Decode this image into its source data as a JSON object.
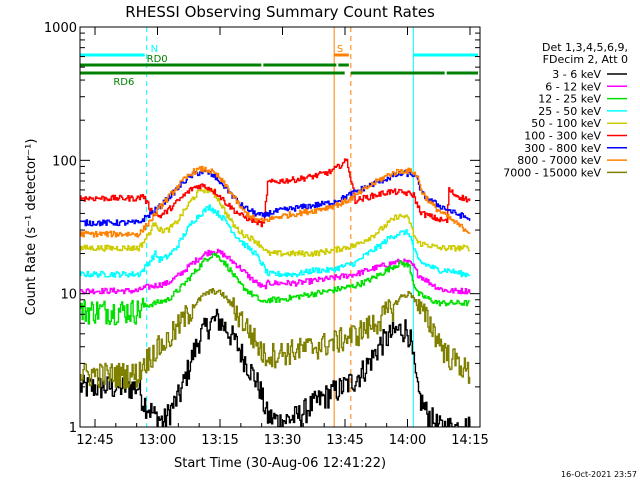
{
  "chart_data": {
    "type": "line",
    "title": "RHESSI Observing Summary Count Rates",
    "xlabel": "Start Time (30-Aug-06 12:41:22)",
    "ylabel": "Count Rate (s⁻¹ detector⁻¹)",
    "yscale": "log",
    "ylim": [
      1,
      1000
    ],
    "xlim_minutes": [
      0,
      96
    ],
    "x_tick_labels": [
      "12:45",
      "13:00",
      "13:15",
      "13:30",
      "13:45",
      "14:00",
      "14:15"
    ],
    "x_tick_minutes": [
      3.6,
      18.6,
      33.6,
      48.6,
      63.6,
      78.6,
      93.6
    ],
    "y_ticks": [
      1,
      10,
      100,
      1000
    ],
    "y_tick_labels": [
      "1",
      "10",
      "100",
      "1000"
    ],
    "legend_header": [
      "Det 1,3,4,5,6,9,",
      "FDecim 2, Att 0"
    ],
    "legend_placement": "right",
    "grid": false,
    "series": [
      {
        "name": "3 - 6 keV",
        "color": "#000000",
        "x": [
          0,
          14,
          15,
          18,
          20,
          24,
          27,
          29,
          31,
          33,
          35,
          37,
          40,
          43,
          44,
          45,
          48,
          52,
          56,
          60,
          63,
          66,
          68,
          70,
          72,
          74,
          76,
          78,
          79,
          80,
          81,
          83,
          86,
          88,
          90,
          92,
          93.5
        ],
        "y": [
          2.0,
          2.0,
          1.6,
          1.2,
          1.1,
          1.8,
          3.5,
          5.0,
          6.0,
          6.5,
          5.5,
          4.5,
          3.0,
          2.0,
          1.5,
          1.2,
          1.1,
          1.2,
          1.5,
          1.8,
          2.0,
          2.3,
          2.7,
          3.3,
          4.2,
          4.8,
          5.3,
          5.5,
          5.0,
          3.0,
          1.8,
          1.3,
          1.0,
          1.0,
          1.0,
          1.0,
          1.0
        ]
      },
      {
        "name": "6 - 12 keV",
        "color": "#ff00ff",
        "x": [
          0,
          14,
          15,
          18,
          21,
          24,
          27,
          30,
          32,
          34,
          36,
          38,
          41,
          44,
          45,
          48,
          52,
          56,
          60,
          63,
          66,
          69,
          72,
          75,
          77,
          79,
          80,
          81,
          84,
          86,
          88,
          91,
          93.5
        ],
        "y": [
          10.5,
          10.5,
          11,
          11.5,
          12,
          14,
          17,
          20,
          21,
          20,
          18,
          16,
          13,
          11,
          12,
          12,
          12,
          12.5,
          13,
          13.5,
          14,
          15,
          16,
          17,
          17.5,
          17,
          16,
          14,
          12,
          11,
          10.5,
          10.5,
          10.5
        ]
      },
      {
        "name": "12 - 25 keV",
        "color": "#00e000",
        "x": [
          0,
          14,
          15,
          18,
          21,
          24,
          27,
          30,
          32,
          34,
          36,
          38,
          41,
          44,
          45,
          48,
          52,
          56,
          60,
          63,
          66,
          69,
          72,
          75,
          77,
          79,
          80,
          81,
          84,
          86,
          88,
          91,
          93.5
        ],
        "y": [
          7.5,
          7.5,
          8,
          8.5,
          9,
          11,
          14,
          18,
          20,
          18,
          15,
          12,
          10,
          8.5,
          9,
          9,
          9.5,
          10,
          10.5,
          11,
          11.5,
          12.5,
          14,
          16,
          17,
          16,
          12,
          10,
          9,
          8.5,
          8.5,
          8.5,
          8.5
        ]
      },
      {
        "name": "25 - 50 keV",
        "color": "#00ffff",
        "x": [
          0,
          14,
          15,
          17,
          18,
          19,
          21,
          23,
          25,
          27,
          29,
          31,
          33,
          35,
          37,
          39,
          42,
          44,
          45,
          48,
          52,
          56,
          60,
          63,
          66,
          68,
          70,
          72,
          74,
          76,
          78,
          79,
          80,
          81,
          82,
          84,
          86,
          88,
          90,
          92,
          93.5
        ],
        "y": [
          14,
          14,
          15,
          18,
          20,
          18,
          19,
          22,
          28,
          35,
          40,
          45,
          40,
          35,
          28,
          24,
          20,
          16,
          14,
          14,
          14,
          15,
          15,
          16,
          17,
          19,
          21,
          23,
          26,
          28,
          29,
          28,
          22,
          18,
          17,
          16,
          15,
          15,
          14.5,
          14,
          14
        ]
      },
      {
        "name": "50 - 100 keV",
        "color": "#cccc00",
        "x": [
          0,
          14,
          15,
          17,
          18,
          19,
          21,
          23,
          25,
          27,
          29,
          31,
          32,
          33,
          35,
          37,
          39,
          42,
          44,
          45,
          48,
          52,
          56,
          60,
          63,
          66,
          68,
          70,
          72,
          74,
          76,
          78,
          79,
          80,
          81,
          84,
          86,
          88,
          91,
          93.5
        ],
        "y": [
          22,
          22,
          24,
          30,
          35,
          30,
          30,
          34,
          42,
          52,
          60,
          60,
          56,
          52,
          40,
          32,
          28,
          25,
          22,
          20,
          20,
          20,
          20,
          21,
          22,
          23,
          25,
          27,
          30,
          34,
          38,
          38,
          35,
          28,
          24,
          23,
          22,
          22,
          22,
          22
        ]
      },
      {
        "name": "100 - 300 keV",
        "color": "#ff0000",
        "x": [
          0,
          14,
          15,
          17,
          19,
          21,
          23,
          25,
          27,
          29,
          31,
          33,
          35,
          37,
          39,
          42,
          44,
          45,
          48,
          52,
          56,
          60,
          62,
          63,
          64,
          66,
          68,
          70,
          72,
          74,
          76,
          78,
          80,
          81,
          82,
          84,
          86,
          88,
          88.5,
          90,
          93.5
        ],
        "y": [
          52,
          52,
          55,
          42,
          38,
          42,
          48,
          55,
          62,
          65,
          62,
          56,
          48,
          42,
          38,
          35,
          33,
          68,
          70,
          72,
          76,
          82,
          90,
          95,
          100,
          50,
          52,
          54,
          56,
          58,
          58,
          57,
          55,
          45,
          40,
          38,
          36,
          35,
          60,
          55,
          50
        ]
      },
      {
        "name": "300 - 800 keV",
        "color": "#0000ff",
        "x": [
          0,
          14,
          15,
          17,
          19,
          21,
          23,
          25,
          27,
          29,
          31,
          33,
          35,
          37,
          39,
          42,
          44,
          45,
          48,
          52,
          56,
          60,
          63,
          66,
          68,
          70,
          72,
          74,
          76,
          78,
          80,
          81,
          82,
          84,
          86,
          88,
          90,
          92,
          93.5
        ],
        "y": [
          34,
          34,
          36,
          40,
          45,
          52,
          60,
          70,
          78,
          82,
          80,
          72,
          62,
          52,
          45,
          40,
          38,
          40,
          42,
          44,
          46,
          48,
          52,
          58,
          62,
          66,
          70,
          74,
          78,
          80,
          78,
          70,
          56,
          50,
          46,
          43,
          40,
          38,
          36
        ]
      },
      {
        "name": "800 - 7000 keV",
        "color": "#ff8000",
        "x": [
          0,
          14,
          15,
          17,
          19,
          21,
          23,
          25,
          27,
          29,
          31,
          33,
          35,
          37,
          39,
          42,
          44,
          45,
          48,
          52,
          56,
          60,
          63,
          66,
          68,
          70,
          72,
          74,
          76,
          78,
          80,
          81,
          82,
          84,
          86,
          88,
          90,
          92,
          93.5
        ],
        "y": [
          28,
          28,
          30,
          36,
          44,
          52,
          62,
          72,
          82,
          86,
          84,
          76,
          64,
          52,
          42,
          36,
          35,
          36,
          38,
          40,
          42,
          45,
          48,
          54,
          60,
          66,
          72,
          78,
          82,
          84,
          82,
          74,
          58,
          48,
          42,
          38,
          34,
          31,
          29
        ]
      },
      {
        "name": "7000 - 15000 keV",
        "color": "#808000",
        "x": [
          0,
          14,
          15,
          18,
          21,
          24,
          27,
          30,
          32,
          34,
          36,
          38,
          41,
          44,
          45,
          48,
          52,
          56,
          60,
          63,
          66,
          69,
          72,
          75,
          77,
          79,
          80,
          81,
          84,
          86,
          88,
          91,
          93.5
        ],
        "y": [
          2.5,
          2.5,
          3.0,
          3.8,
          4.5,
          6,
          8,
          10,
          10.5,
          10,
          8.5,
          7,
          5,
          3.5,
          3.5,
          3.6,
          3.8,
          4,
          4.3,
          4.6,
          5,
          5.6,
          6.5,
          8,
          9.5,
          10,
          9.5,
          8,
          6,
          4.5,
          3.5,
          3,
          2.5
        ]
      }
    ],
    "flag_bars": [
      {
        "label": "N",
        "color": "#00ffff",
        "level_fraction": 0.93,
        "segments": [
          [
            0,
            16
          ],
          [
            80,
            96
          ]
        ]
      },
      {
        "label": "RD0",
        "color": "#008000",
        "level_fraction": 0.905,
        "segments": [
          [
            0,
            44
          ],
          [
            44,
            62
          ],
          [
            62,
            65
          ]
        ]
      },
      {
        "label": "RD6",
        "color": "#008000",
        "level_fraction": 0.885,
        "segments": [
          [
            0,
            64
          ],
          [
            65,
            88
          ],
          [
            88,
            96
          ]
        ]
      },
      {
        "label": "S",
        "color": "#ff8000",
        "level_fraction": 0.93,
        "segments": [
          [
            61,
            65
          ]
        ]
      }
    ],
    "vlines": [
      {
        "x": 0,
        "color": "#00ffff",
        "dash": false
      },
      {
        "x": 16,
        "color": "#00ffff",
        "dash": true
      },
      {
        "x": 61,
        "color": "#ff8000",
        "dash": false
      },
      {
        "x": 65,
        "color": "#ff8000",
        "dash": true
      },
      {
        "x": 80,
        "color": "#00ffff",
        "dash": false
      },
      {
        "x": 96,
        "color": "#00ffff",
        "dash": true
      }
    ]
  },
  "footer": {
    "timestamp": "16-Oct-2021 23:57"
  }
}
